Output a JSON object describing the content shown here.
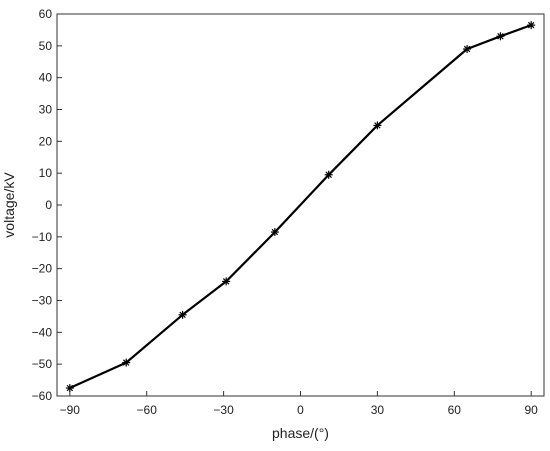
{
  "chart_data": {
    "type": "line",
    "title": "",
    "xlabel": "phase/(°)",
    "ylabel": "voltage/kV",
    "xlim": [
      -95,
      95
    ],
    "ylim": [
      -60,
      60
    ],
    "xticks": [
      -90,
      -60,
      -30,
      0,
      30,
      60,
      90
    ],
    "xtick_labels": [
      "−90",
      "−60",
      "−30",
      "0",
      "30",
      "60",
      "90"
    ],
    "yticks": [
      -60,
      -50,
      -40,
      -30,
      -20,
      -10,
      0,
      10,
      20,
      30,
      40,
      50,
      60
    ],
    "ytick_labels": [
      "−60",
      "−50",
      "−40",
      "−30",
      "−20",
      "−10",
      "0",
      "10",
      "20",
      "30",
      "40",
      "50",
      "60"
    ],
    "grid": false,
    "marker": "asterisk",
    "series": [
      {
        "x": [
          -90,
          -68,
          -46,
          -29,
          -10,
          11,
          30,
          65,
          78,
          90
        ],
        "y": [
          -57.5,
          -49.5,
          -34.5,
          -24,
          -8.5,
          9.5,
          25,
          49,
          53,
          56.5
        ],
        "color": "#000000"
      }
    ]
  }
}
